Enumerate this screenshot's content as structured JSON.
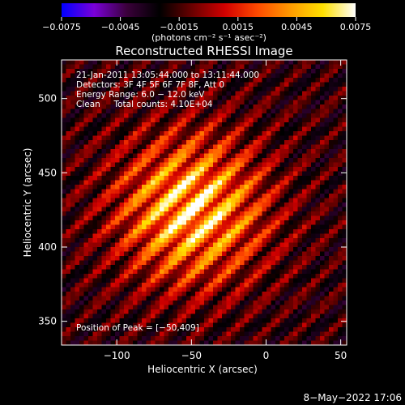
{
  "colorbar": {
    "ticks": [
      -0.0075,
      -0.0045,
      -0.0015,
      0.0015,
      0.0045,
      0.0075
    ],
    "tick_labels": [
      "−0.0075",
      "−0.0045",
      "−0.0015",
      "0.0015",
      "0.0045",
      "0.0075"
    ],
    "range": [
      -0.0075,
      0.0075
    ],
    "unit_label": "(photons cm⁻² s⁻¹ asec⁻²)",
    "stops": [
      "#0000ff",
      "#7a00d8",
      "#3a003a",
      "#000000",
      "#6a0000",
      "#d20000",
      "#ff4a00",
      "#ff9a00",
      "#ffe000",
      "#ffffff"
    ]
  },
  "chart_data": {
    "type": "heatmap",
    "title": "Reconstructed RHESSI Image",
    "xlabel": "Heliocentric X (arcsec)",
    "ylabel": "Heliocentric Y (arcsec)",
    "xlim": [
      -137,
      54
    ],
    "ylim": [
      334,
      526
    ],
    "xticks": [
      -100,
      -50,
      0,
      50
    ],
    "xtick_labels": [
      "−100",
      "−50",
      "0",
      "50"
    ],
    "yticks": [
      350,
      400,
      450,
      500
    ],
    "ytick_labels": [
      "350",
      "400",
      "450",
      "500"
    ],
    "peak": [
      -50,
      409
    ],
    "source_center": [
      -50,
      425
    ],
    "fringe_direction": "lower-left to upper-right diagonal stripes",
    "annotations": [
      "21-Jan-2011 13:05:44.000 to 13:11:44.000",
      "Detectors: 3F 4F 5F 6F 7F 8F, Att 0",
      "Energy Range: 6.0 − 12.0 keV",
      "Clean     Total counts: 4.10E+04",
      "Position of Peak = [−50,409]"
    ]
  },
  "footer": {
    "date": "8−May−2022 17:06"
  }
}
